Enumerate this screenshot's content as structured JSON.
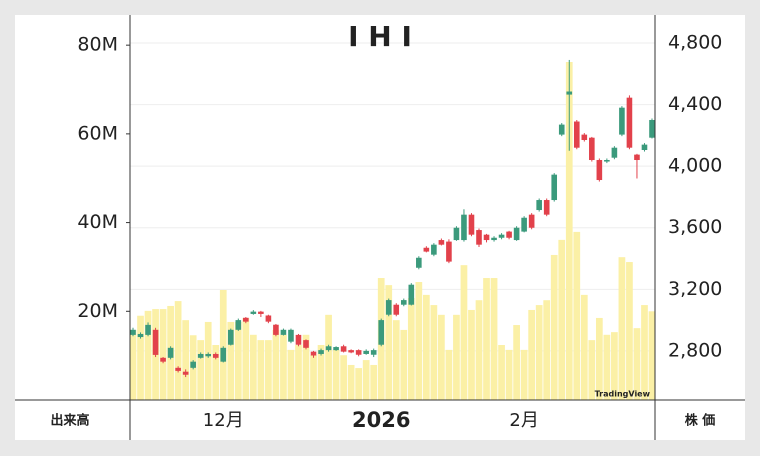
{
  "chart_data": {
    "type": "candlestick",
    "title": "I H I",
    "categories": [
      null,
      null,
      null,
      null,
      null,
      null,
      null,
      null,
      null,
      null,
      null,
      null,
      "12月",
      null,
      null,
      null,
      null,
      null,
      null,
      null,
      null,
      null,
      null,
      null,
      null,
      null,
      null,
      null,
      null,
      null,
      null,
      null,
      null,
      "2026",
      null,
      null,
      null,
      null,
      null,
      null,
      null,
      null,
      null,
      null,
      null,
      null,
      null,
      null,
      null,
      null,
      null,
      null,
      "2月",
      null,
      null,
      null,
      null,
      null,
      null,
      null,
      null,
      null,
      null,
      null,
      null,
      null,
      null,
      null,
      null,
      null
    ],
    "open": [
      2904,
      2890,
      2904,
      2937,
      2755,
      2755,
      2690,
      2665,
      2690,
      2755,
      2765,
      2780,
      2730,
      2840,
      2937,
      3015,
      3040,
      3055,
      3030,
      2970,
      2904,
      2860,
      2904,
      2870,
      2795,
      2780,
      2805,
      2805,
      2830,
      2805,
      2805,
      2780,
      2775,
      2840,
      3035,
      3100,
      3100,
      3100,
      3340,
      3470,
      3425,
      3520,
      3510,
      3520,
      3520,
      3685,
      3585,
      3555,
      3520,
      3535,
      3575,
      3520,
      3575,
      3685,
      3715,
      3780,
      3780,
      4205,
      4465,
      4290,
      4205,
      4185,
      4040,
      4030,
      4055,
      4205,
      4445,
      4075,
      4105,
      4185
    ],
    "high": [
      2950,
      2920,
      2985,
      2950,
      2760,
      2830,
      2700,
      2680,
      2740,
      2790,
      2790,
      2790,
      2830,
      2945,
      3010,
      3020,
      3065,
      3060,
      3035,
      2975,
      2945,
      2945,
      2910,
      2875,
      2800,
      2815,
      2840,
      2830,
      2840,
      2810,
      2810,
      2810,
      2815,
      3010,
      3140,
      3110,
      3140,
      3240,
      3415,
      3480,
      3500,
      3530,
      3525,
      3610,
      3720,
      3695,
      3595,
      3560,
      3545,
      3565,
      3580,
      3610,
      3675,
      3695,
      3790,
      3790,
      3955,
      4280,
      4690,
      4300,
      4215,
      4190,
      4050,
      4050,
      4130,
      4390,
      4460,
      4080,
      4150,
      4310
    ],
    "low": [
      2895,
      2880,
      2895,
      2760,
      2720,
      2745,
      2660,
      2630,
      2680,
      2750,
      2755,
      2745,
      2725,
      2835,
      2930,
      2980,
      3035,
      3020,
      2980,
      2895,
      2900,
      2850,
      2830,
      2810,
      2755,
      2770,
      2795,
      2800,
      2790,
      2785,
      2765,
      2775,
      2760,
      2830,
      3025,
      3025,
      3090,
      3095,
      3330,
      3440,
      3415,
      3485,
      3370,
      3515,
      3510,
      3545,
      3475,
      3505,
      3510,
      3525,
      3525,
      3515,
      3570,
      3590,
      3705,
      3675,
      3770,
      4195,
      4100,
      4110,
      4160,
      4030,
      3900,
      4020,
      4045,
      4195,
      4110,
      3920,
      4095,
      4180
    ],
    "close": [
      2937,
      2910,
      2969,
      2774,
      2730,
      2820,
      2670,
      2645,
      2730,
      2780,
      2780,
      2755,
      2820,
      2937,
      3000,
      2990,
      3055,
      3040,
      2990,
      2904,
      2937,
      2937,
      2840,
      2820,
      2770,
      2805,
      2830,
      2825,
      2795,
      2790,
      2775,
      2800,
      2805,
      3000,
      3130,
      3035,
      3130,
      3230,
      3405,
      3445,
      3490,
      3490,
      3380,
      3600,
      3685,
      3555,
      3490,
      3520,
      3535,
      3555,
      3535,
      3600,
      3665,
      3600,
      3780,
      3685,
      3945,
      4270,
      4485,
      4120,
      4170,
      4040,
      3910,
      4040,
      4120,
      4380,
      4120,
      4040,
      4140,
      4300
    ],
    "volume": [
      15.8,
      19,
      20.1,
      20.5,
      20.5,
      21.2,
      22.3,
      18,
      14.6,
      13.5,
      17.6,
      12.4,
      24.8,
      17.6,
      17.6,
      18.5,
      14.7,
      13.5,
      13.5,
      15.8,
      14.7,
      11.3,
      12.4,
      14.7,
      10.1,
      12.4,
      19.2,
      11.3,
      10.1,
      7.9,
      7.2,
      9,
      7.9,
      27.5,
      25.9,
      18,
      15.8,
      23,
      26.6,
      23.7,
      21.4,
      19.2,
      11.3,
      19.2,
      30.4,
      20.3,
      22.5,
      27.5,
      27.5,
      12.4,
      11.3,
      16.9,
      11.3,
      20.3,
      21.4,
      22.5,
      32.7,
      36.1,
      76.2,
      37.9,
      23.7,
      13.5,
      18.5,
      14.7,
      15.3,
      32.2,
      31.1,
      16.2,
      21.4,
      20
    ],
    "up_color": "#3b9a7c",
    "down_color": "#e2414b",
    "volume_color": "#fbf0a6",
    "ylim": [
      0,
      86.8
    ],
    "yticks": [
      {
        "value": 20,
        "label": "20M"
      },
      {
        "value": 40,
        "label": "40M"
      },
      {
        "value": 60,
        "label": "60M"
      },
      {
        "value": 80,
        "label": "80M"
      }
    ],
    "y2lim": [
      2481,
      4982
    ],
    "y2ticks": [
      {
        "value": 2800,
        "label": "2,800"
      },
      {
        "value": 3200,
        "label": "3,200"
      },
      {
        "value": 3600,
        "label": "3,600"
      },
      {
        "value": 4000,
        "label": "4,000"
      },
      {
        "value": 4400,
        "label": "4,400"
      },
      {
        "value": 4800,
        "label": "4,800"
      }
    ],
    "y_label": "出来高",
    "y2_label": "株 価",
    "watermark": "TradingView",
    "grid": true
  }
}
